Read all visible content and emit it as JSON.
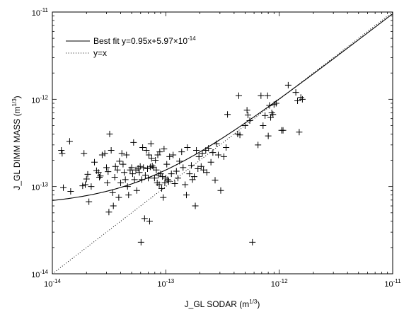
{
  "chart_data": {
    "type": "scatter",
    "xlabel": "J_GL SODAR (m^{1/3})",
    "ylabel": "J_GL DIMM MASS (m^{1/3})",
    "xscale": "log",
    "yscale": "log",
    "xlim": [
      1e-14,
      1e-11
    ],
    "ylim": [
      1e-14,
      1e-11
    ],
    "xticks": [
      1e-14,
      1e-13,
      1e-12,
      1e-11
    ],
    "yticks": [
      1e-14,
      1e-13,
      1e-12,
      1e-11
    ],
    "tick_labels": [
      "10^{-14}",
      "10^{-13}",
      "10^{-12}",
      "10^{-11}"
    ],
    "legend_position": "top-left",
    "fit": {
      "slope": 0.95,
      "intercept": 5.97e-14
    },
    "series": [
      {
        "name": "Best fit y=0.95x+5.97×10^{-14}",
        "kind": "line",
        "style": "solid"
      },
      {
        "name": "y=x",
        "kind": "line",
        "style": "dotted"
      },
      {
        "kind": "points",
        "marker": "+",
        "points": [
          [
            1.2e-14,
            2.6e-13
          ],
          [
            1.22e-14,
            2.4e-13
          ],
          [
            1.25e-14,
            9.7e-14
          ],
          [
            1.42e-14,
            3.3e-13
          ],
          [
            1.45e-14,
            8.8e-14
          ],
          [
            1.85e-14,
            1.02e-13
          ],
          [
            1.9e-14,
            2.4e-13
          ],
          [
            1.95e-14,
            1.05e-13
          ],
          [
            2e-14,
            1.22e-13
          ],
          [
            2.05e-14,
            1.38e-13
          ],
          [
            2.1e-14,
            6.7e-14
          ],
          [
            2.2e-14,
            1e-13
          ],
          [
            2.35e-14,
            1.9e-13
          ],
          [
            2.45e-14,
            1.52e-13
          ],
          [
            2.55e-14,
            1.45e-13
          ],
          [
            2.6e-14,
            1.28e-13
          ],
          [
            2.65e-14,
            1.32e-13
          ],
          [
            2.75e-14,
            2.3e-13
          ],
          [
            2.9e-14,
            2.4e-13
          ],
          [
            3e-14,
            1.65e-13
          ],
          [
            3.05e-14,
            1.1e-13
          ],
          [
            3.1e-14,
            1.48e-13
          ],
          [
            3.15e-14,
            5.1e-14
          ],
          [
            3.2e-14,
            4e-13
          ],
          [
            3.3e-14,
            2.6e-13
          ],
          [
            3.4e-14,
            8.5e-14
          ],
          [
            3.45e-14,
            6e-14
          ],
          [
            3.55e-14,
            1.28e-13
          ],
          [
            3.6e-14,
            1.7e-13
          ],
          [
            3.75e-14,
            1.55e-13
          ],
          [
            3.85e-14,
            7.5e-14
          ],
          [
            3.9e-14,
            1.95e-13
          ],
          [
            4e-14,
            1.1e-13
          ],
          [
            4.1e-14,
            2.4e-13
          ],
          [
            4.2e-14,
            1.8e-13
          ],
          [
            4.3e-14,
            1.45e-13
          ],
          [
            4.4e-14,
            1.2e-13
          ],
          [
            4.5e-14,
            2.3e-13
          ],
          [
            4.6e-14,
            1e-13
          ],
          [
            4.7e-14,
            8e-14
          ],
          [
            4.85e-14,
            1.55e-13
          ],
          [
            5e-14,
            1.65e-13
          ],
          [
            5.1e-14,
            1.4e-13
          ],
          [
            5.2e-14,
            3.2e-13
          ],
          [
            5.3e-14,
            1.2e-13
          ],
          [
            5.45e-14,
            1.55e-13
          ],
          [
            5.55e-14,
            9e-14
          ],
          [
            5.7e-14,
            1.62e-13
          ],
          [
            5.85e-14,
            1.45e-13
          ],
          [
            5.95e-14,
            1.7e-13
          ],
          [
            6.05e-14,
            2.3e-14
          ],
          [
            6.15e-14,
            1.2e-13
          ],
          [
            6.25e-14,
            2.8e-13
          ],
          [
            6.35e-14,
            1.65e-13
          ],
          [
            6.5e-14,
            4.3e-14
          ],
          [
            6.6e-14,
            1.35e-13
          ],
          [
            6.75e-14,
            2.6e-13
          ],
          [
            6.9e-14,
            1.6e-13
          ],
          [
            7e-14,
            1.25e-13
          ],
          [
            7.1e-14,
            2.3e-13
          ],
          [
            7.2e-14,
            4e-14
          ],
          [
            7.3e-14,
            1.68e-13
          ],
          [
            7.4e-14,
            3.1e-13
          ],
          [
            7.5e-14,
            2.1e-13
          ],
          [
            7.6e-14,
            1.72e-13
          ],
          [
            7.8e-14,
            1.65e-13
          ],
          [
            7.95e-14,
            1.25e-13
          ],
          [
            8.1e-14,
            2e-13
          ],
          [
            8.25e-14,
            1.55e-13
          ],
          [
            8.4e-14,
            1.1e-13
          ],
          [
            8.5e-14,
            2.3e-13
          ],
          [
            8.6e-14,
            1.35e-13
          ],
          [
            8.75e-14,
            1.05e-13
          ],
          [
            8.85e-14,
            2.5e-13
          ],
          [
            9e-14,
            1.4e-13
          ],
          [
            9.2e-14,
            9.5e-14
          ],
          [
            9.35e-14,
            1.3e-13
          ],
          [
            9.5e-14,
            7.5e-14
          ],
          [
            9.65e-14,
            2.7e-13
          ],
          [
            9.8e-14,
            1.1e-13
          ],
          [
            1e-13,
            1.25e-13
          ],
          [
            1.02e-13,
            1.8e-13
          ],
          [
            1.04e-13,
            1.2e-13
          ],
          [
            1.06e-13,
            1.15e-13
          ],
          [
            1.08e-13,
            2.2e-13
          ],
          [
            1.12e-13,
            1.4e-13
          ],
          [
            1.16e-13,
            2.3e-13
          ],
          [
            1.2e-13,
            1.08e-13
          ],
          [
            1.24e-13,
            1.5e-13
          ],
          [
            1.28e-13,
            1.25e-13
          ],
          [
            1.32e-13,
            1.95e-13
          ],
          [
            1.38e-13,
            2.5e-13
          ],
          [
            1.42e-13,
            1.65e-13
          ],
          [
            1.48e-13,
            1.05e-13
          ],
          [
            1.52e-13,
            8e-14
          ],
          [
            1.55e-13,
            2.8e-13
          ],
          [
            1.62e-13,
            1.4e-13
          ],
          [
            1.68e-13,
            1.75e-13
          ],
          [
            1.72e-13,
            1.2e-13
          ],
          [
            1.78e-13,
            1.3e-13
          ],
          [
            1.82e-13,
            6e-14
          ],
          [
            1.86e-13,
            2.6e-13
          ],
          [
            1.92e-13,
            1.6e-13
          ],
          [
            1.96e-13,
            2.2e-13
          ],
          [
            2.05e-13,
            1.7e-13
          ],
          [
            2.1e-13,
            2.4e-13
          ],
          [
            2.15e-13,
            1.55e-13
          ],
          [
            2.25e-13,
            2.6e-13
          ],
          [
            2.3e-13,
            1.45e-13
          ],
          [
            2.38e-13,
            2.75e-13
          ],
          [
            2.5e-13,
            1.9e-13
          ],
          [
            2.6e-13,
            2.45e-13
          ],
          [
            2.72e-13,
            1.18e-13
          ],
          [
            2.8e-13,
            3.1e-13
          ],
          [
            2.9e-13,
            2.3e-13
          ],
          [
            3.05e-13,
            9e-14
          ],
          [
            3.25e-13,
            2.2e-13
          ],
          [
            3.4e-13,
            2.8e-13
          ],
          [
            3.5e-13,
            6.7e-13
          ],
          [
            4.3e-13,
            4e-13
          ],
          [
            4.4e-13,
            1.1e-12
          ],
          [
            4.5e-13,
            3.9e-13
          ],
          [
            5e-13,
            5e-13
          ],
          [
            5.2e-13,
            7.5e-13
          ],
          [
            5.3e-13,
            6.6e-13
          ],
          [
            5.5e-13,
            5.7e-13
          ],
          [
            5.8e-13,
            2.3e-14
          ],
          [
            6.5e-13,
            3e-13
          ],
          [
            6.9e-13,
            1.1e-12
          ],
          [
            7.2e-13,
            5e-13
          ],
          [
            7.5e-13,
            6.5e-13
          ],
          [
            7.9e-13,
            1.1e-12
          ],
          [
            8e-13,
            3.8e-13
          ],
          [
            8.2e-13,
            8.5e-13
          ],
          [
            8.4e-13,
            6.2e-13
          ],
          [
            8.6e-13,
            7e-13
          ],
          [
            8.8e-13,
            6.7e-13
          ],
          [
            9e-13,
            8.7e-13
          ],
          [
            9.4e-13,
            9e-13
          ],
          [
            1.05e-12,
            4.4e-13
          ],
          [
            1.08e-12,
            4.4e-13
          ],
          [
            1.2e-12,
            1.45e-12
          ],
          [
            1.4e-12,
            1.2e-12
          ],
          [
            1.45e-12,
            9.6e-13
          ],
          [
            1.5e-12,
            4.2e-13
          ],
          [
            1.55e-12,
            1.05e-12
          ],
          [
            1.6e-12,
            1e-12
          ]
        ]
      }
    ]
  }
}
